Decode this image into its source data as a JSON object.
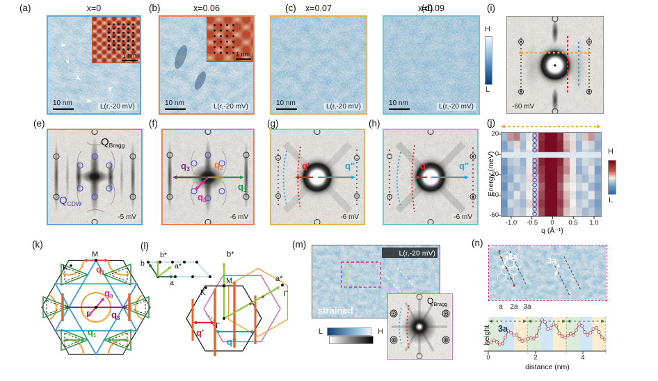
{
  "panels": {
    "a": {
      "label": "(a)",
      "title": "x=0",
      "scalebar": "10 nm",
      "tag": "L(r,-20 mV)",
      "inset_scalebar": "1 nm"
    },
    "b": {
      "label": "(b)",
      "title": "x=0.06",
      "scalebar": "10 nm",
      "tag": "L(r,-20 mV)",
      "inset_scalebar": "1 nm"
    },
    "c": {
      "label": "(c)",
      "title": "x=0.07",
      "scalebar": "10 nm",
      "tag": "L(r,-20 mV)"
    },
    "d": {
      "label": "(d)",
      "title": "x=0.09",
      "scalebar": "10 nm",
      "tag": "L(r,-20 mV)"
    },
    "stm_colorbar": {
      "high": "H",
      "low": "L"
    },
    "e": {
      "label": "(e)",
      "bias": "-5 mV",
      "q_bragg_base": "Q",
      "q_bragg_sub": "Bragg",
      "q_cdw_base": "Q",
      "q_cdw_sub": "CDW"
    },
    "f": {
      "label": "(f)",
      "bias": "-6 mV",
      "q3_base": "q",
      "q3_sub": "3",
      "q2_base": "q",
      "q2_sub": "2",
      "q0_base": "q",
      "q0_sub": "0",
      "q1_base": "q",
      "q1_sub": "1"
    },
    "g": {
      "label": "(g)",
      "bias": "-6 mV",
      "q_prime": "q'",
      "q_double_prime": "q''"
    },
    "h": {
      "label": "(h)",
      "bias": "-6 mV",
      "q_prime": "q'",
      "q_double_prime": "q''"
    },
    "i": {
      "label": "(i)",
      "bias": "-60 mV"
    },
    "j": {
      "label": "(j)"
    },
    "k": {
      "label": "(k)",
      "gamma": "Γ",
      "k_point": "K",
      "m_point": "M",
      "q2_base": "q",
      "q2_sub": "2",
      "q0_base": "q",
      "q0_sub": "0",
      "q3_base": "q",
      "q3_sub": "3",
      "q1_base": "q",
      "q1_sub": "1"
    },
    "l": {
      "label": "(l)",
      "vec_a": "a",
      "vec_b": "b",
      "vec_a_star": "a*",
      "vec_b_star": "b*",
      "main_b_star": "b*",
      "main_a_star": "a*",
      "gamma_center": "Γ",
      "gamma_right": "Γ",
      "k_point": "K",
      "m_point": "M",
      "q_prime": "q'",
      "q_double_prime": "q''"
    },
    "m": {
      "label": "(m)",
      "tag": "L(r,-20 mV)",
      "strained_label": "strained",
      "cb_low": "L",
      "cb_high": "H",
      "q_bragg_base": "Q",
      "q_bragg_sub": "Bragg"
    },
    "n": {
      "label": "(n)",
      "marker_left": "3a",
      "marker_right": "3a"
    }
  },
  "chart_data": [
    {
      "panel": "j",
      "type": "heatmap",
      "xlabel": "q (Å⁻¹)",
      "ylabel": "Energy (meV)",
      "xticks": [
        "-1.0",
        "-0.5",
        "0",
        "0.5",
        "1.0"
      ],
      "yticks": [
        "20",
        "0",
        "-20",
        "-40",
        "-60"
      ],
      "xlim": [
        -1.25,
        1.15
      ],
      "ylim": [
        -60,
        22
      ],
      "legend": {
        "high": "H",
        "low": "L"
      },
      "gap_energy": 0,
      "cdw_marker_q": -0.45,
      "q_bins": [
        -1.1,
        -0.95,
        -0.8,
        -0.65,
        -0.5,
        -0.35,
        -0.2,
        -0.07,
        0.07,
        0.2,
        0.35,
        0.5,
        0.65,
        0.8,
        0.95,
        1.1
      ],
      "energy_bins": [
        18,
        10,
        2,
        -6,
        -14,
        -22,
        -30,
        -38,
        -46,
        -54
      ],
      "intensity": [
        [
          0.3,
          0.7,
          0.75,
          0.35,
          0.45,
          0.65,
          0.92,
          1.0,
          1.0,
          0.92,
          0.6,
          0.45,
          0.35,
          0.6,
          0.7,
          0.3
        ],
        [
          0.22,
          0.35,
          0.55,
          0.3,
          0.5,
          0.6,
          0.95,
          1.0,
          1.0,
          0.95,
          0.65,
          0.55,
          0.28,
          0.45,
          0.4,
          0.25
        ],
        [
          0.25,
          0.3,
          0.45,
          0.35,
          0.45,
          0.7,
          0.95,
          1.0,
          1.0,
          0.95,
          0.7,
          0.45,
          0.3,
          0.4,
          0.35,
          0.28
        ],
        [
          0.2,
          0.35,
          0.4,
          0.28,
          0.48,
          0.68,
          0.95,
          1.0,
          1.0,
          0.95,
          0.68,
          0.48,
          0.3,
          0.42,
          0.38,
          0.3
        ],
        [
          0.15,
          0.3,
          0.35,
          0.32,
          0.52,
          0.72,
          0.9,
          1.0,
          1.0,
          0.9,
          0.72,
          0.52,
          0.26,
          0.36,
          0.45,
          0.2
        ],
        [
          0.22,
          0.26,
          0.42,
          0.36,
          0.55,
          0.62,
          0.88,
          1.0,
          1.0,
          0.88,
          0.62,
          0.46,
          0.36,
          0.3,
          0.4,
          0.26
        ],
        [
          0.16,
          0.36,
          0.3,
          0.4,
          0.46,
          0.56,
          0.82,
          1.0,
          1.0,
          0.82,
          0.56,
          0.5,
          0.4,
          0.46,
          0.3,
          0.2
        ],
        [
          0.22,
          0.3,
          0.46,
          0.34,
          0.5,
          0.62,
          0.86,
          1.0,
          1.0,
          0.86,
          0.62,
          0.46,
          0.3,
          0.36,
          0.46,
          0.26
        ],
        [
          0.16,
          0.4,
          0.36,
          0.3,
          0.56,
          0.66,
          0.9,
          1.0,
          1.0,
          0.9,
          0.66,
          0.5,
          0.36,
          0.42,
          0.3,
          0.2
        ],
        [
          0.2,
          0.3,
          0.4,
          0.36,
          0.5,
          0.6,
          0.86,
          1.0,
          1.0,
          0.86,
          0.6,
          0.46,
          0.4,
          0.3,
          0.36,
          0.24
        ]
      ],
      "colors": {
        "low": "#2a66ae",
        "mid": "#f3efe9",
        "high": "#7a0c21"
      }
    },
    {
      "panel": "n",
      "type": "line",
      "xlabel": "distance (nm)",
      "ylabel": "height",
      "xticks": [
        "0",
        "2",
        "4"
      ],
      "lattice_constant_nm": 0.55,
      "band_labels": [
        "a",
        "2a",
        "3a"
      ],
      "period_label": "3a",
      "x_start": 0,
      "x_step_nm": 0.12,
      "y": [
        0.17,
        0.21,
        0.26,
        0.22,
        0.15,
        0.17,
        0.34,
        0.52,
        0.47,
        0.4,
        0.41,
        0.3,
        0.24,
        0.27,
        0.3,
        0.33,
        0.31,
        0.38,
        0.6,
        0.83,
        0.76,
        0.57,
        0.6,
        0.7,
        0.66,
        0.45,
        0.37,
        0.34,
        0.39,
        0.44,
        0.41,
        0.54,
        0.71,
        0.66,
        0.49,
        0.41,
        0.47,
        0.57,
        0.61,
        0.49,
        0.35,
        0.29
      ]
    }
  ]
}
